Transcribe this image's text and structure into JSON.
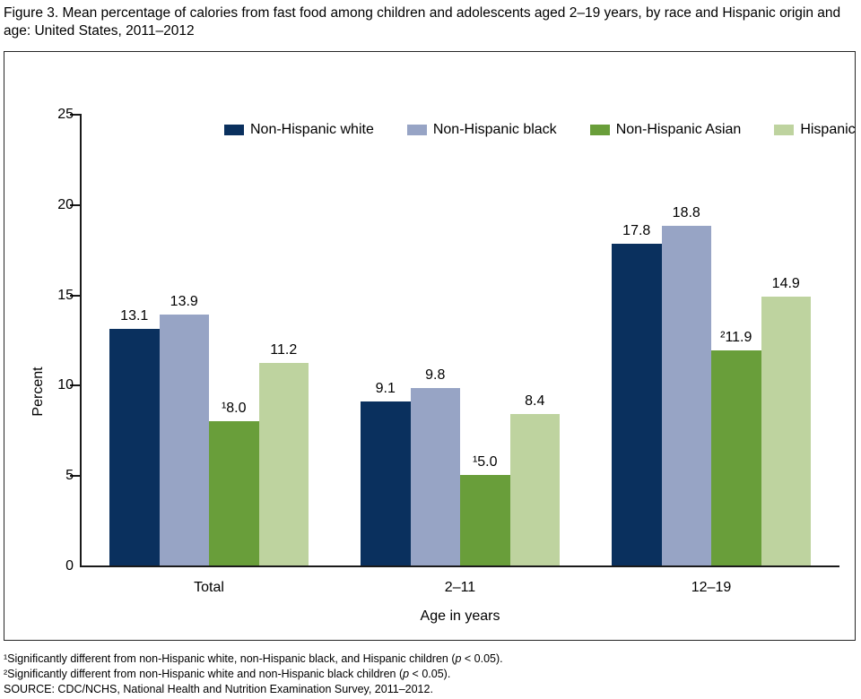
{
  "title": "Figure 3. Mean percentage of calories from fast food among children and adolescents aged 2–19 years, by race and Hispanic origin and age: United States, 2011–2012",
  "chart_data": {
    "type": "bar",
    "title": "Figure 3. Mean percentage of calories from fast food among children and adolescents aged 2–19 years, by race and Hispanic origin and age: United States, 2011–2012",
    "categories": [
      "Total",
      "2–11",
      "12–19"
    ],
    "series": [
      {
        "name": "Non-Hispanic white",
        "color": "#0a305e",
        "values": [
          13.1,
          9.1,
          17.8
        ],
        "bar_labels": [
          "13.1",
          "9.1",
          "17.8"
        ]
      },
      {
        "name": "Non-Hispanic black",
        "color": "#97a4c5",
        "values": [
          13.9,
          9.8,
          18.8
        ],
        "bar_labels": [
          "13.9",
          "9.8",
          "18.8"
        ]
      },
      {
        "name": "Non-Hispanic Asian",
        "color": "#699e3a",
        "values": [
          8.0,
          5.0,
          11.9
        ],
        "bar_labels": [
          "¹8.0",
          "¹5.0",
          "²11.9"
        ]
      },
      {
        "name": "Hispanic",
        "color": "#bed39f",
        "values": [
          11.2,
          8.4,
          14.9
        ],
        "bar_labels": [
          "11.2",
          "8.4",
          "14.9"
        ]
      }
    ],
    "xlabel": "Age in years",
    "ylabel": "Percent",
    "ylim": [
      0,
      25
    ],
    "yticks": [
      0,
      5,
      10,
      15,
      20,
      25
    ],
    "grid": false,
    "legend_position": "top"
  },
  "footnotes": [
    [
      {
        "t": "¹Significantly different from non-Hispanic white, non-Hispanic black, and Hispanic children ("
      },
      {
        "t": "p",
        "i": true
      },
      {
        "t": " < 0.05)."
      }
    ],
    [
      {
        "t": "²Significantly different from non-Hispanic white and non-Hispanic black children ("
      },
      {
        "t": "p",
        "i": true
      },
      {
        "t": " < 0.05)."
      }
    ],
    [
      {
        "t": "SOURCE: CDC/NCHS, National Health and Nutrition Examination Survey, 2011–2012."
      }
    ]
  ]
}
